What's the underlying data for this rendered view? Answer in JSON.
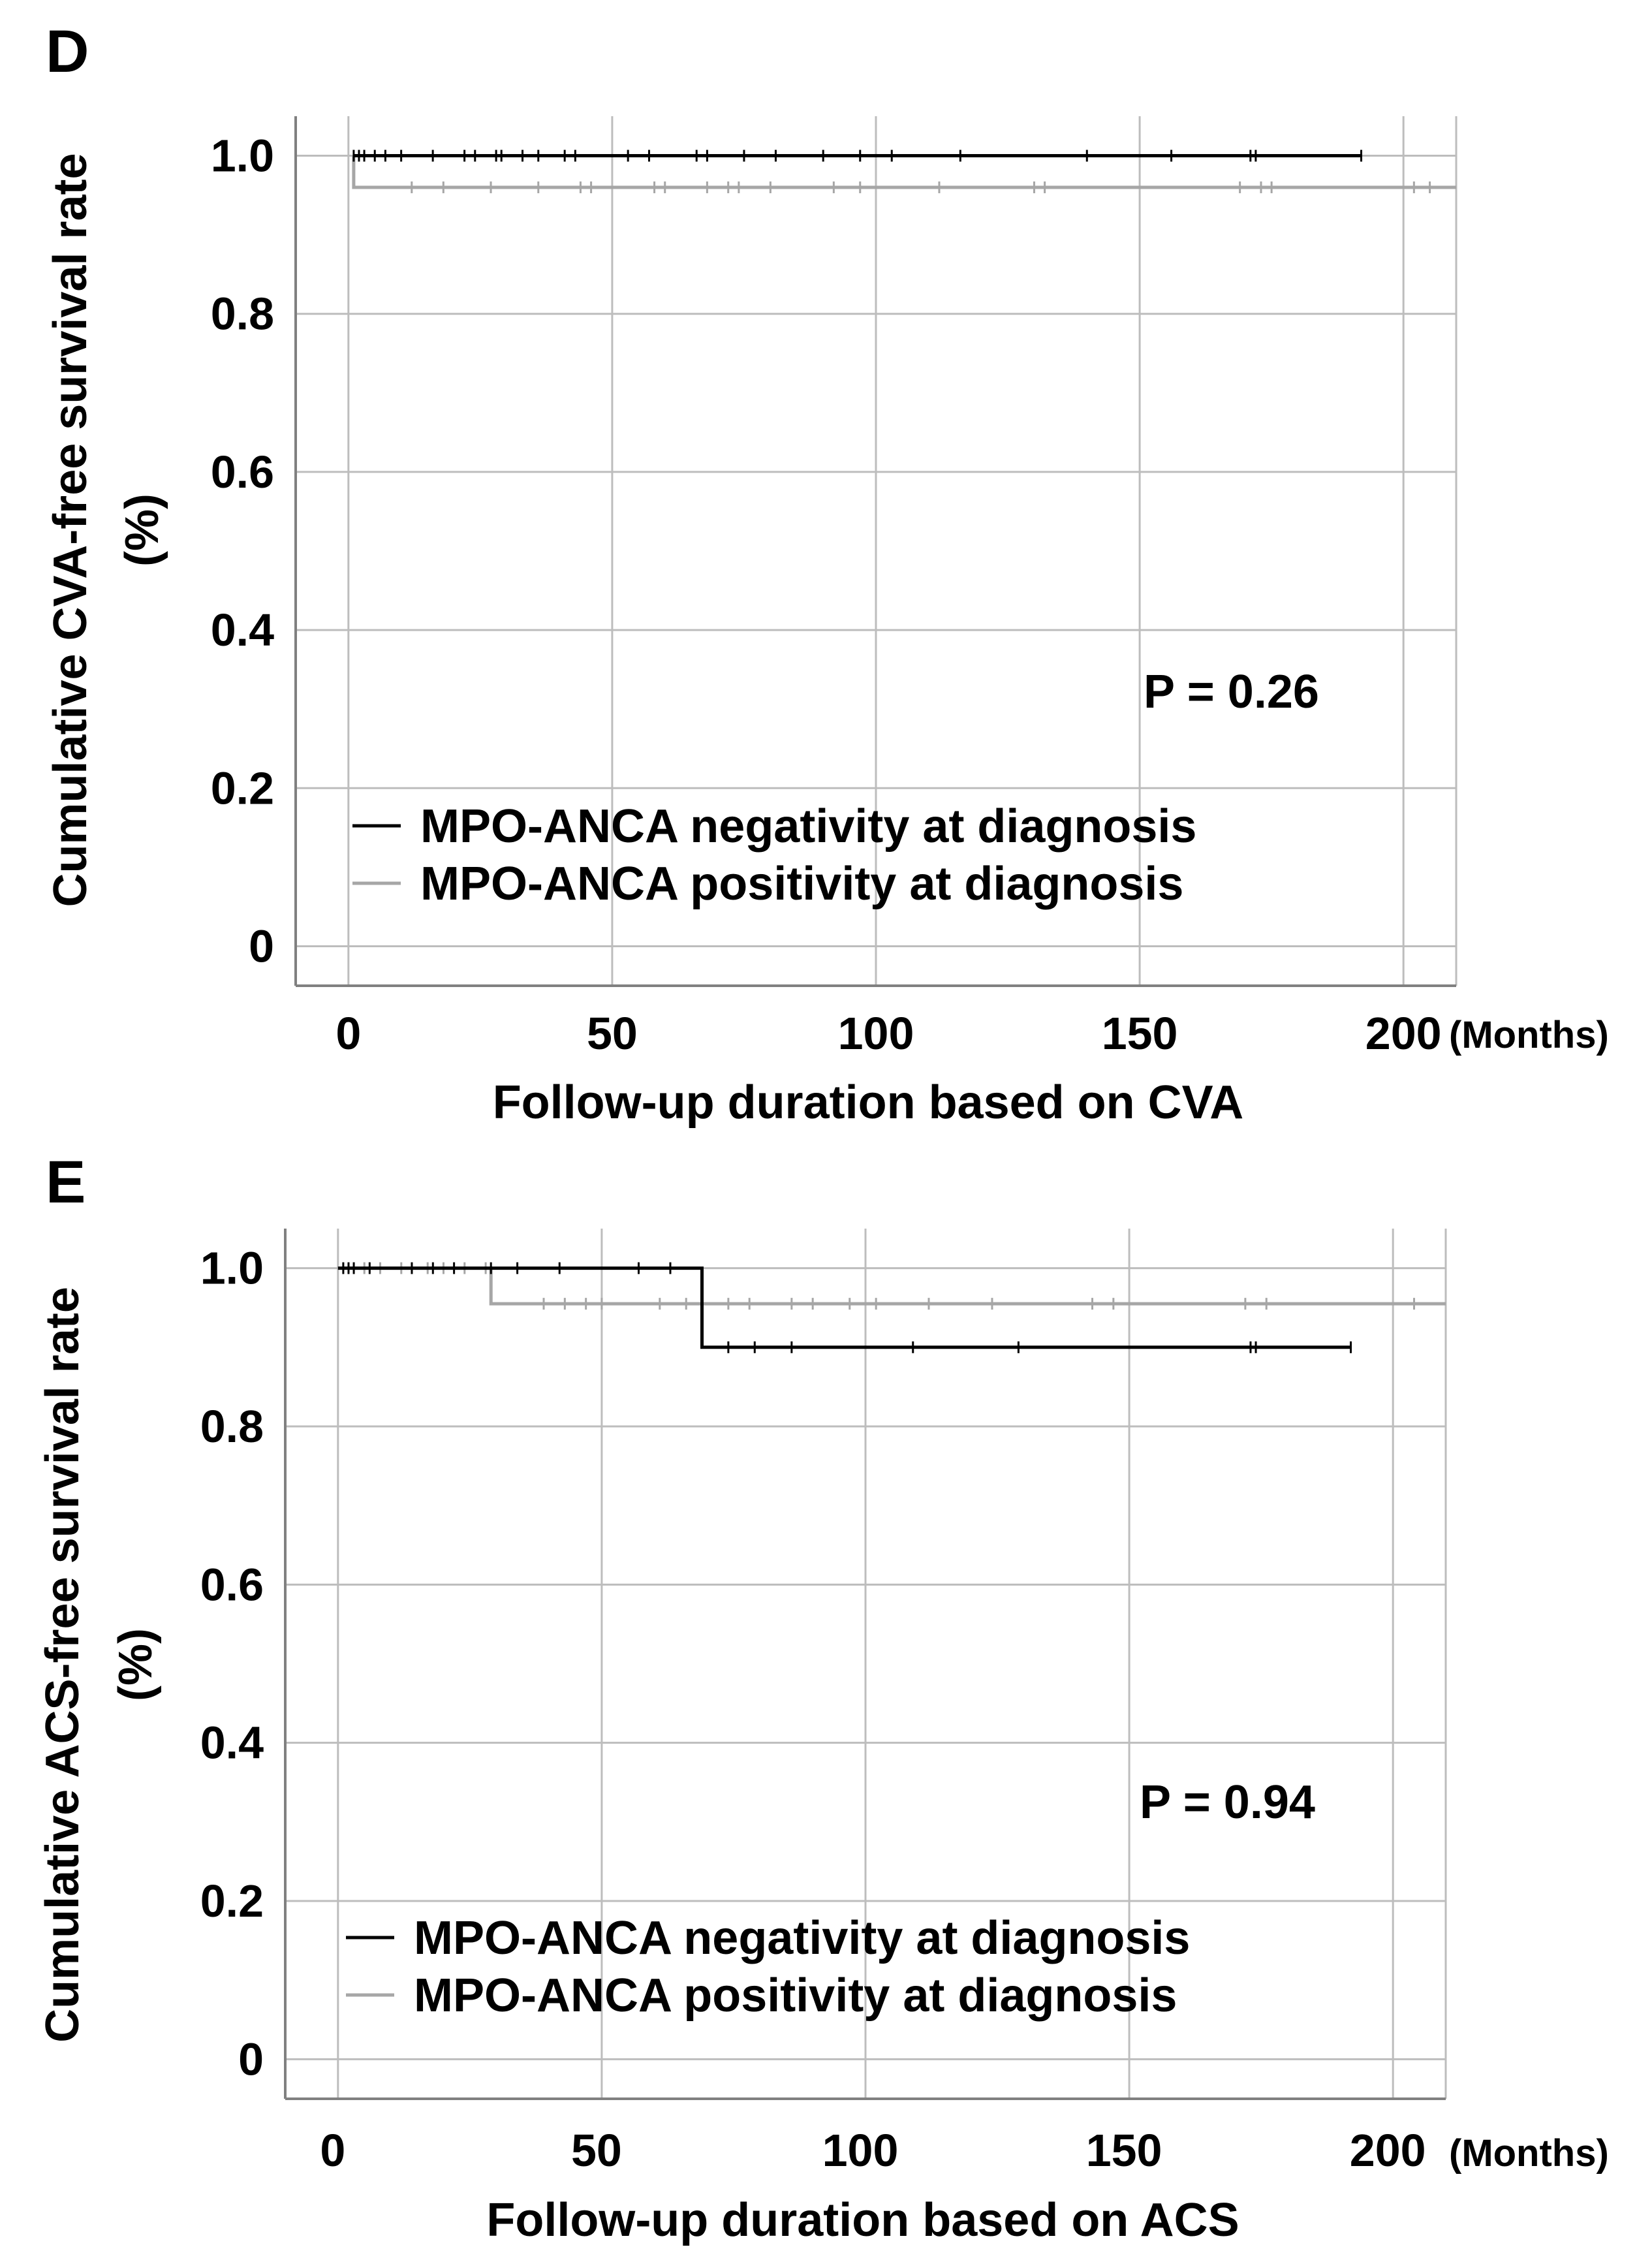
{
  "chart_data": [
    {
      "type": "line",
      "panel_label": "D",
      "title": "",
      "xlabel": "Follow-up duration based on CVA",
      "x_unit": "(Months)",
      "ylabel_line1": "Cumulative CVA-free survival rate",
      "ylabel_line2": "(%)",
      "xlim": [
        -10,
        210
      ],
      "ylim": [
        -0.05,
        1.05
      ],
      "xticks": [
        0,
        50,
        100,
        150,
        200
      ],
      "xtick_labels": [
        "0",
        "50",
        "100",
        "150",
        "200"
      ],
      "yticks": [
        0,
        0.2,
        0.4,
        0.6,
        0.8,
        1.0
      ],
      "ytick_labels": [
        "0",
        "0.2",
        "0.4",
        "0.6",
        "0.8",
        "1.0"
      ],
      "grid": true,
      "annotation": "P = 0.26",
      "legend_position": "bottom-left",
      "series": [
        {
          "name": "MPO-ANCA negativity at diagnosis",
          "color": "#000000",
          "steps": [
            [
              1,
              1.0
            ],
            [
              192,
              1.0
            ]
          ],
          "censor_times": [
            1,
            2,
            3,
            5,
            7,
            10,
            16,
            22,
            24,
            28,
            29,
            33,
            36,
            41,
            43,
            53,
            57,
            66,
            68,
            75,
            81,
            90,
            97,
            103,
            116,
            140,
            156,
            171,
            172,
            192
          ]
        },
        {
          "name": "MPO-ANCA positivity at diagnosis",
          "color": "#a6a6a6",
          "steps": [
            [
              1,
              1.0
            ],
            [
              1,
              0.96
            ],
            [
              210,
              0.96
            ]
          ],
          "censor_times": [
            12,
            18,
            27,
            36,
            44,
            46,
            58,
            60,
            68,
            72,
            74,
            80,
            92,
            97,
            112,
            130,
            132,
            169,
            173,
            175,
            202,
            205
          ]
        }
      ]
    },
    {
      "type": "line",
      "panel_label": "E",
      "title": "",
      "xlabel": "Follow-up duration based on ACS",
      "x_unit": "(Months)",
      "ylabel_line1": "Cumulative ACS-free survival rate",
      "ylabel_line2": "(%)",
      "xlim": [
        -10,
        210
      ],
      "ylim": [
        -0.05,
        1.05
      ],
      "xticks": [
        0,
        50,
        100,
        150,
        200
      ],
      "xtick_labels": [
        "0",
        "50",
        "100",
        "150",
        "200"
      ],
      "yticks": [
        0,
        0.2,
        0.4,
        0.6,
        0.8,
        1.0
      ],
      "ytick_labels": [
        "0",
        "0.2",
        "0.4",
        "0.6",
        "0.8",
        "1.0"
      ],
      "grid": true,
      "annotation": "P = 0.94",
      "legend_position": "bottom-left",
      "series": [
        {
          "name": "MPO-ANCA negativity at diagnosis",
          "color": "#000000",
          "steps": [
            [
              0,
              1.0
            ],
            [
              69,
              1.0
            ],
            [
              69,
              0.9
            ],
            [
              192,
              0.9
            ]
          ],
          "censor_times": [
            1,
            2,
            3,
            6,
            14,
            18,
            22,
            29,
            34,
            42,
            57,
            63,
            74,
            79,
            86,
            109,
            129,
            173,
            174,
            192
          ]
        },
        {
          "name": "MPO-ANCA positivity at diagnosis",
          "color": "#a6a6a6",
          "steps": [
            [
              0,
              1.0
            ],
            [
              29,
              1.0
            ],
            [
              29,
              0.955
            ],
            [
              210,
              0.955
            ]
          ],
          "censor_times": [
            5,
            8,
            12,
            17,
            20,
            24,
            28,
            39,
            43,
            47,
            50,
            61,
            66,
            74,
            78,
            86,
            90,
            97,
            102,
            112,
            124,
            143,
            147,
            172,
            176,
            204
          ]
        }
      ]
    }
  ]
}
